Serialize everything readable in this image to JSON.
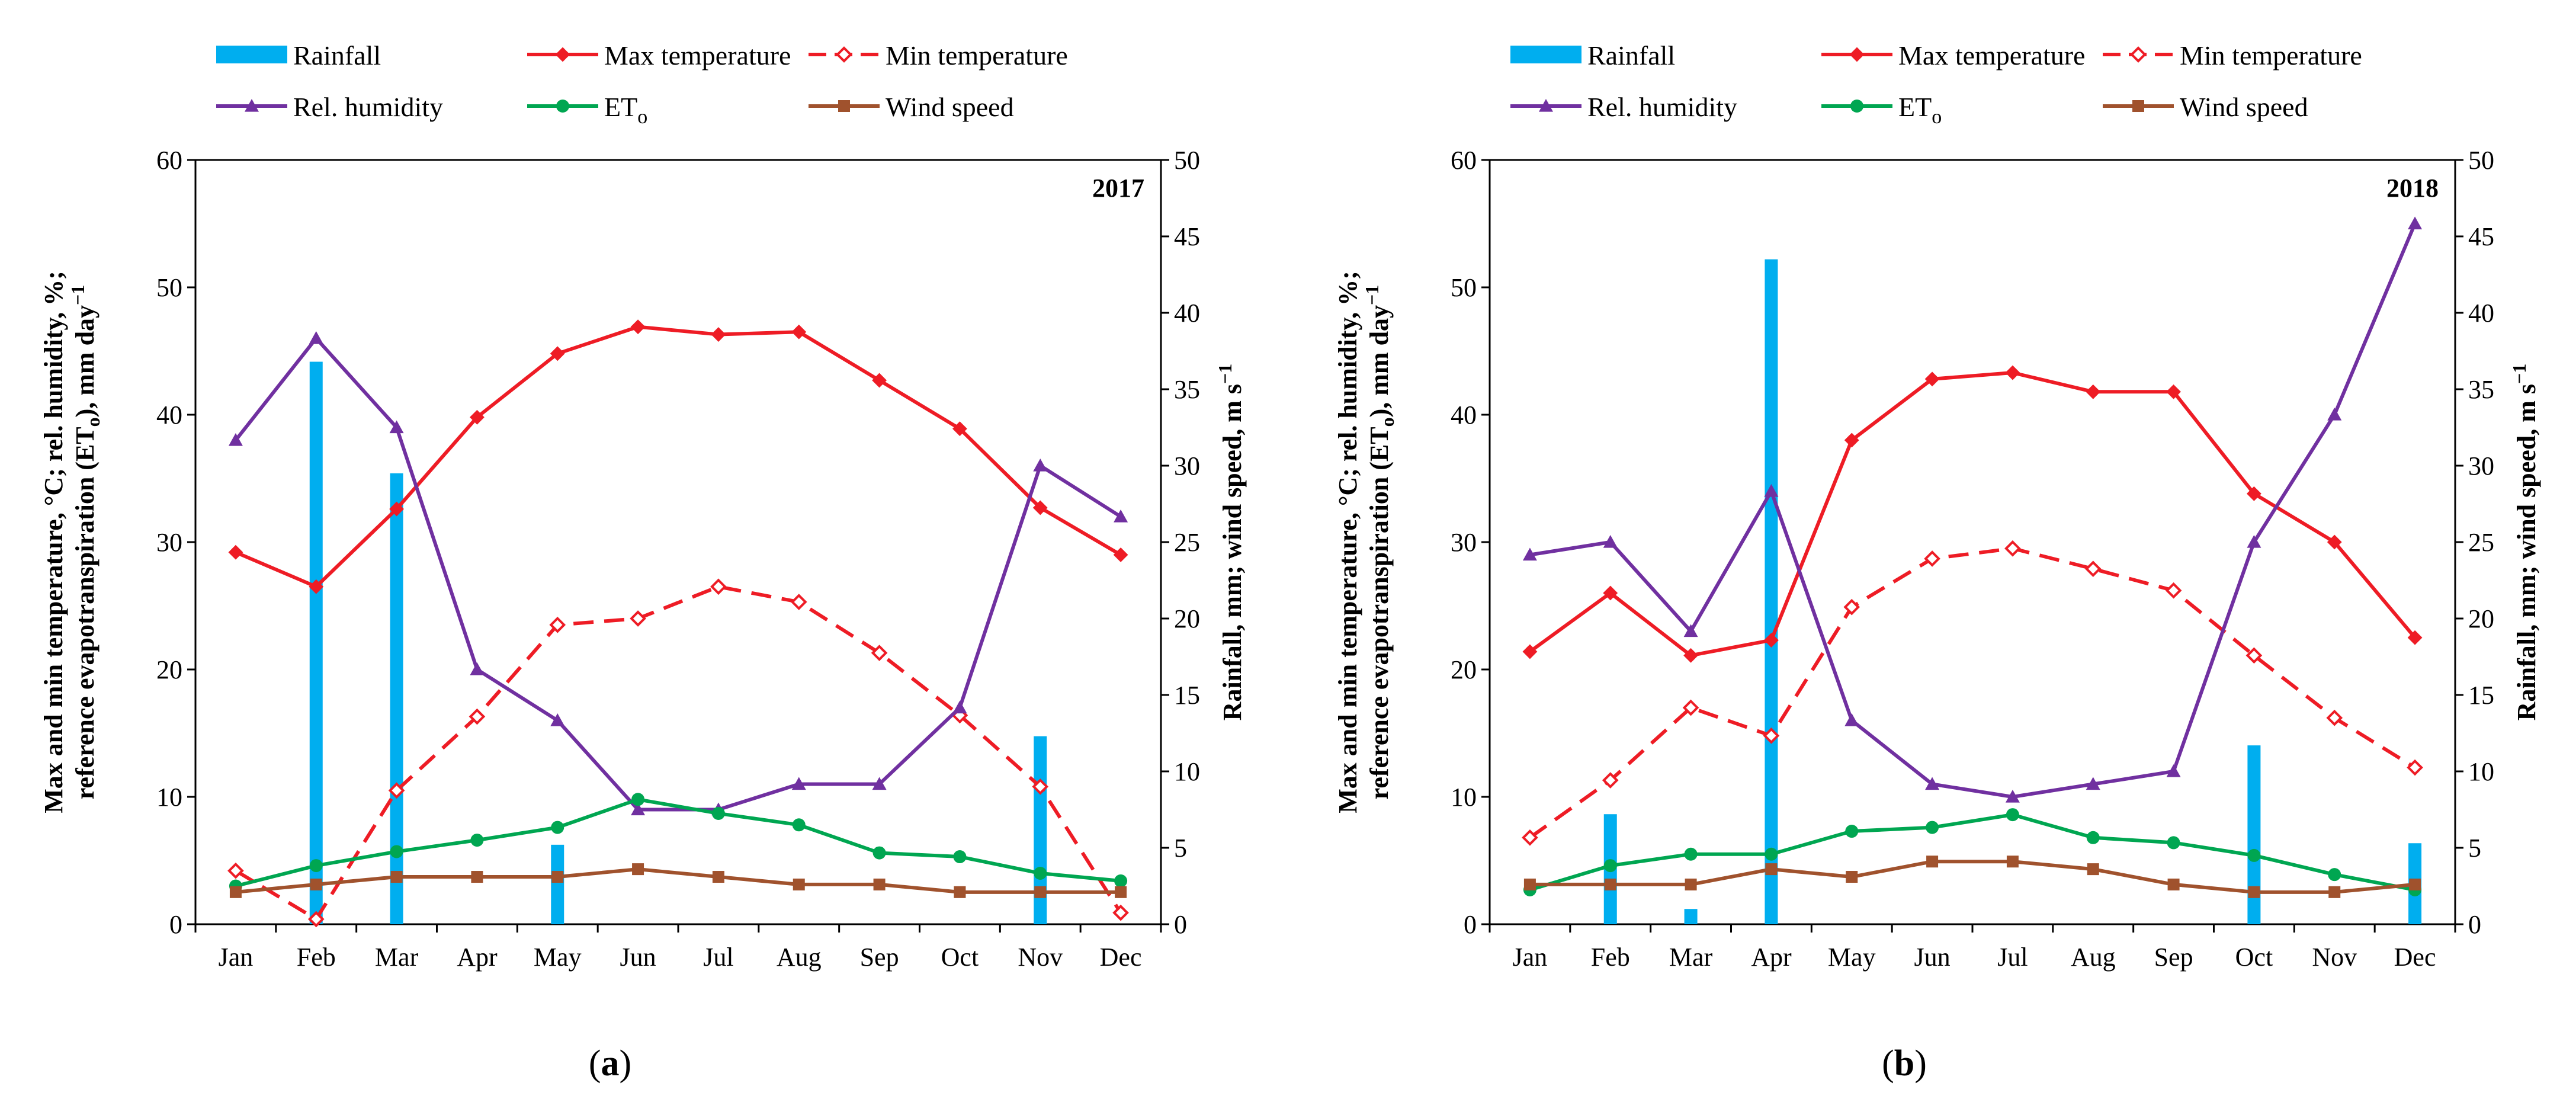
{
  "legend": {
    "rainfall": "Rainfall",
    "max_temp": "Max temperature",
    "min_temp": "Min temperature",
    "rel_humidity": "Rel. humidity",
    "eto_base": "ET",
    "eto_sub": "o",
    "wind_speed": "Wind speed"
  },
  "axes": {
    "left_label_line1": "Max and min temperature, °C; rel. humidity, %;",
    "left_label_line2_pre": "reference evapotranspiration (ET",
    "left_label_line2_sub": "o",
    "left_label_line2_post": "), mm day",
    "left_label_line2_sup": "−1",
    "right_label_main": "Rainfall, mm; wind speed, m s",
    "right_label_sup": "−1"
  },
  "colors": {
    "rainfall": "#00AEEF",
    "temperature": "#EE1C25",
    "humidity": "#7030A0",
    "eto": "#00A651",
    "wind": "#A0522D",
    "axis": "#000000"
  },
  "chart_data": [
    {
      "type": "bar+line",
      "panel_label": "(a)",
      "year_label": "2017",
      "categories": [
        "Jan",
        "Feb",
        "Mar",
        "Apr",
        "May",
        "Jun",
        "Jul",
        "Aug",
        "Sep",
        "Oct",
        "Nov",
        "Dec"
      ],
      "y_left": {
        "min": 0,
        "max": 60,
        "ticks": [
          0,
          10,
          20,
          30,
          40,
          50,
          60
        ]
      },
      "y_right": {
        "min": 0,
        "max": 50,
        "ticks": [
          0,
          5,
          10,
          15,
          20,
          25,
          30,
          35,
          40,
          45,
          50
        ]
      },
      "series": [
        {
          "name": "Rainfall",
          "key": "rainfall",
          "axis": "right",
          "kind": "bar",
          "values": [
            0,
            36.8,
            29.5,
            0,
            5.2,
            0,
            0,
            0,
            0,
            0,
            12.3,
            0
          ]
        },
        {
          "name": "Max temperature",
          "key": "max_temp",
          "axis": "left",
          "kind": "line",
          "values": [
            29.2,
            26.5,
            32.6,
            39.8,
            44.8,
            46.9,
            46.3,
            46.5,
            42.7,
            38.9,
            32.7,
            29.0
          ]
        },
        {
          "name": "Min temperature",
          "key": "min_temp",
          "axis": "left",
          "kind": "line-dashed",
          "values": [
            4.2,
            0.4,
            10.5,
            16.3,
            23.5,
            24.0,
            26.5,
            25.3,
            21.3,
            16.4,
            10.8,
            0.9
          ]
        },
        {
          "name": "Rel. humidity",
          "key": "rel_humidity",
          "axis": "left",
          "kind": "line",
          "values": [
            38,
            46,
            39,
            20,
            16,
            9,
            9,
            11,
            11,
            17,
            36,
            32
          ]
        },
        {
          "name": "ETo",
          "key": "eto",
          "axis": "left",
          "kind": "line",
          "values": [
            3.0,
            4.6,
            5.7,
            6.6,
            7.6,
            9.8,
            8.7,
            7.8,
            5.6,
            5.3,
            4.0,
            3.4
          ]
        },
        {
          "name": "Wind speed",
          "key": "wind_speed",
          "axis": "right",
          "kind": "line",
          "values": [
            2.1,
            2.6,
            3.1,
            3.1,
            3.1,
            3.6,
            3.1,
            2.6,
            2.6,
            2.1,
            2.1,
            2.1
          ]
        }
      ]
    },
    {
      "type": "bar+line",
      "panel_label": "(b)",
      "year_label": "2018",
      "categories": [
        "Jan",
        "Feb",
        "Mar",
        "Apr",
        "May",
        "Jun",
        "Jul",
        "Aug",
        "Sep",
        "Oct",
        "Nov",
        "Dec"
      ],
      "y_left": {
        "min": 0,
        "max": 60,
        "ticks": [
          0,
          10,
          20,
          30,
          40,
          50,
          60
        ]
      },
      "y_right": {
        "min": 0,
        "max": 50,
        "ticks": [
          0,
          5,
          10,
          15,
          20,
          25,
          30,
          35,
          40,
          45,
          50
        ]
      },
      "series": [
        {
          "name": "Rainfall",
          "key": "rainfall",
          "axis": "right",
          "kind": "bar",
          "values": [
            0,
            7.2,
            1.0,
            43.5,
            0,
            0,
            0,
            0,
            0,
            11.7,
            0,
            5.3
          ]
        },
        {
          "name": "Max temperature",
          "key": "max_temp",
          "axis": "left",
          "kind": "line",
          "values": [
            21.4,
            26.0,
            21.1,
            22.3,
            38.0,
            42.8,
            43.3,
            41.8,
            41.8,
            33.8,
            30.0,
            22.5
          ]
        },
        {
          "name": "Min temperature",
          "key": "min_temp",
          "axis": "left",
          "kind": "line-dashed",
          "values": [
            6.8,
            11.3,
            17.0,
            14.8,
            24.9,
            28.7,
            29.5,
            27.9,
            26.2,
            21.1,
            16.2,
            12.3
          ]
        },
        {
          "name": "Rel. humidity",
          "key": "rel_humidity",
          "axis": "left",
          "kind": "line",
          "values": [
            29,
            30,
            23,
            34,
            16,
            11,
            10,
            11,
            12,
            30,
            40,
            55
          ]
        },
        {
          "name": "ETo",
          "key": "eto",
          "axis": "left",
          "kind": "line",
          "values": [
            2.7,
            4.6,
            5.5,
            5.5,
            7.3,
            7.6,
            8.6,
            6.8,
            6.4,
            5.4,
            3.9,
            2.7
          ]
        },
        {
          "name": "Wind speed",
          "key": "wind_speed",
          "axis": "right",
          "kind": "line",
          "values": [
            2.6,
            2.6,
            2.6,
            3.6,
            3.1,
            4.1,
            4.1,
            3.6,
            2.6,
            2.1,
            2.1,
            2.6
          ]
        }
      ]
    }
  ]
}
